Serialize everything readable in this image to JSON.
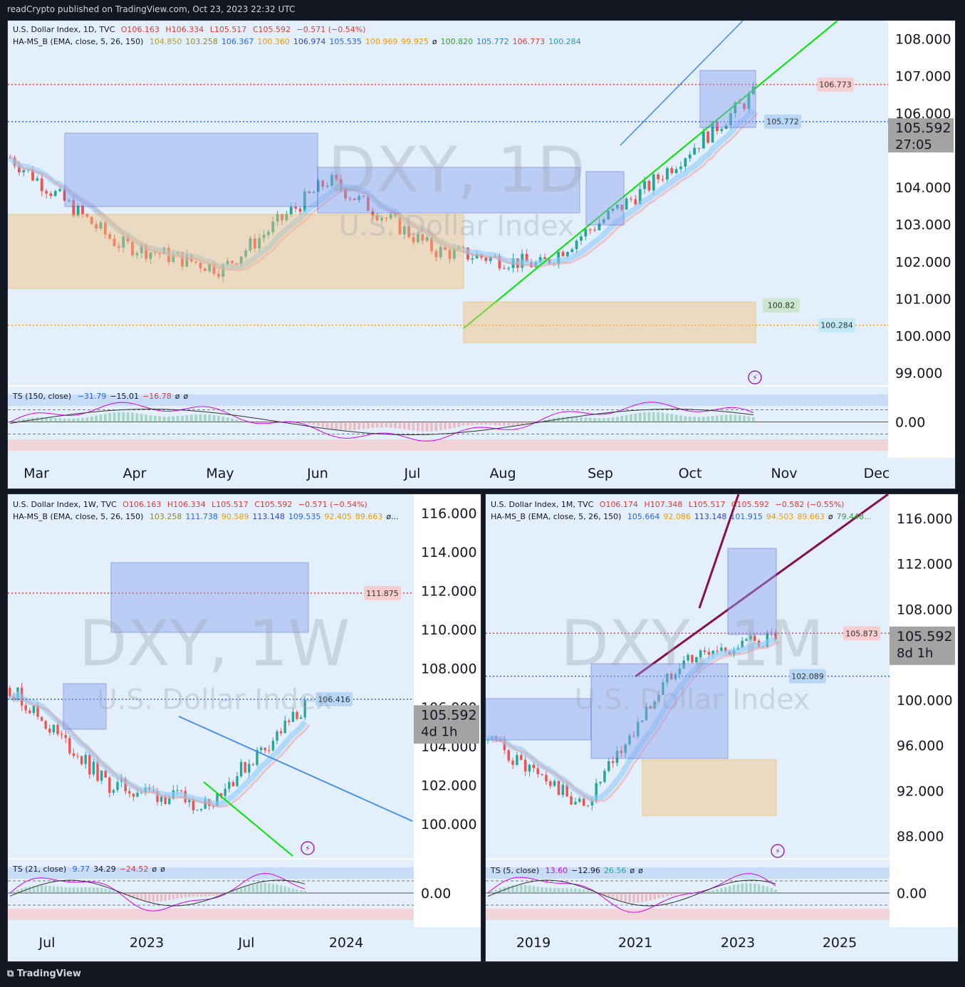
{
  "header": {
    "published": "readCrypto published on TradingView.com, Oct 23, 2023 22:32 UTC"
  },
  "footer": {
    "logo": "TradingView"
  },
  "colors": {
    "page_bg": "#131722",
    "panel_bg": "#e3effa",
    "up": "#26a69a",
    "down": "#ef5350",
    "blue_line": "#2962ff",
    "green_line": "#00e600",
    "purple_line": "#880e4f"
  },
  "panels": [
    {
      "id": "daily",
      "symbol_line": {
        "name": "U.S. Dollar Index, 1D, TVC",
        "o": "O106.163",
        "h": "H106.334",
        "l": "L105.517",
        "c": "C105.592",
        "chg": "−0.571 (−0.54%)"
      },
      "indicator_line": {
        "name": "HA-MS_B (EMA, close, 5, 26, 150)",
        "values": [
          {
            "v": "104.850",
            "c": "#b5a22a"
          },
          {
            "v": "103.258",
            "c": "#8f8a2e"
          },
          {
            "v": "106.367",
            "c": "#2962ff"
          },
          {
            "v": "100.360",
            "c": "#f59b00"
          },
          {
            "v": "106.974",
            "c": "#3344cc"
          },
          {
            "v": "105.535",
            "c": "#2962ff"
          },
          {
            "v": "100.969",
            "c": "#f59b00"
          },
          {
            "v": "99.925",
            "c": "#f59b00"
          },
          {
            "v": "ø",
            "c": "#131722"
          },
          {
            "v": "100.820",
            "c": "#3c9b3c"
          },
          {
            "v": "105.772",
            "c": "#2a7bd6"
          },
          {
            "v": "106.773",
            "c": "#e53935"
          },
          {
            "v": "100.284",
            "c": "#19a3c0"
          }
        ]
      },
      "ts_line": {
        "name": "TS (150, close)",
        "values": [
          {
            "v": "−31.79",
            "c": "#2962ff"
          },
          {
            "v": "−15.01",
            "c": "#131722"
          },
          {
            "v": "−16.78",
            "c": "#e53935"
          },
          {
            "v": "ø",
            "c": "#131722"
          },
          {
            "v": "ø",
            "c": "#131722"
          }
        ]
      },
      "watermark": {
        "big": "DXY, 1D",
        "small": "U.S. Dollar Index"
      },
      "y_ticks": [
        "108.000",
        "107.000",
        "106.000",
        "104.000",
        "103.000",
        "102.000",
        "101.000",
        "100.000",
        "99.000"
      ],
      "y_tick_values": [
        108,
        107,
        106,
        104,
        103,
        102,
        101,
        100,
        99
      ],
      "osc_tick": "0.00",
      "x_ticks": [
        "Mar",
        "Apr",
        "May",
        "Jun",
        "Jul",
        "Aug",
        "Sep",
        "Oct",
        "Nov",
        "Dec"
      ],
      "price_box": {
        "price": "105.592",
        "time": "27:05"
      },
      "labels": [
        {
          "text": "106.773",
          "value": 106.773,
          "kind": "red"
        },
        {
          "text": "105.772",
          "value": 105.772,
          "kind": "blue"
        },
        {
          "text": "100.82",
          "value": 100.82,
          "kind": "green"
        },
        {
          "text": "100.284",
          "value": 100.284,
          "kind": "cyan"
        }
      ],
      "ylim": [
        98.8,
        108.3
      ]
    },
    {
      "id": "weekly",
      "symbol_line": {
        "name": "U.S. Dollar Index, 1W, TVC",
        "o": "O106.163",
        "h": "H106.334",
        "l": "L105.517",
        "c": "C105.592",
        "chg": "−0.571 (−0.54%)"
      },
      "indicator_line": {
        "name": "HA-MS_B (EMA, close, 5, 26, 150)",
        "values": [
          {
            "v": "103.258",
            "c": "#8f8a2e"
          },
          {
            "v": "111.738",
            "c": "#2962ff"
          },
          {
            "v": "90.589",
            "c": "#f59b00"
          },
          {
            "v": "113.148",
            "c": "#3344cc"
          },
          {
            "v": "109.535",
            "c": "#2962ff"
          },
          {
            "v": "92.405",
            "c": "#f59b00"
          },
          {
            "v": "89.663",
            "c": "#f59b00"
          },
          {
            "v": "ø...",
            "c": "#131722"
          }
        ]
      },
      "ts_line": {
        "name": "TS (21, close)",
        "values": [
          {
            "v": "9.77",
            "c": "#2962ff"
          },
          {
            "v": "34.29",
            "c": "#131722"
          },
          {
            "v": "−24.52",
            "c": "#e53935"
          },
          {
            "v": "ø",
            "c": "#131722"
          },
          {
            "v": "ø",
            "c": "#131722"
          }
        ]
      },
      "watermark": {
        "big": "DXY, 1W",
        "small": "U.S. Dollar Index"
      },
      "y_ticks": [
        "116.000",
        "114.000",
        "112.000",
        "110.000",
        "108.000",
        "106.000",
        "104.000",
        "102.000",
        "100.000"
      ],
      "y_tick_values": [
        116,
        114,
        112,
        110,
        108,
        106,
        104,
        102,
        100
      ],
      "osc_tick": "0.00",
      "x_ticks": [
        "Jul",
        "2023",
        "Jul",
        "2024"
      ],
      "price_box": {
        "price": "105.592",
        "time": "4d 1h"
      },
      "labels": [
        {
          "text": "111.875",
          "value": 111.875,
          "kind": "red"
        },
        {
          "text": "106.416",
          "value": 106.416,
          "kind": "blue"
        }
      ],
      "ylim": [
        98.2,
        116.6
      ]
    },
    {
      "id": "monthly",
      "symbol_line": {
        "name": "U.S. Dollar Index, 1M, TVC",
        "o": "O106.174",
        "h": "H107.348",
        "l": "L105.517",
        "c": "C105.592",
        "chg": "−0.582 (−0.55%)"
      },
      "indicator_line": {
        "name": "HA-MS_B (EMA, close, 5, 26, 150)",
        "values": [
          {
            "v": "105.664",
            "c": "#2962ff"
          },
          {
            "v": "92.086",
            "c": "#f59b00"
          },
          {
            "v": "113.148",
            "c": "#3344cc"
          },
          {
            "v": "101.915",
            "c": "#2962ff"
          },
          {
            "v": "94.503",
            "c": "#f59b00"
          },
          {
            "v": "89.663",
            "c": "#f59b00"
          },
          {
            "v": "ø",
            "c": "#131722"
          },
          {
            "v": "79.448...",
            "c": "#3c9b3c"
          }
        ]
      },
      "ts_line": {
        "name": "TS (5, close)",
        "values": [
          {
            "v": "13.60",
            "c": "#d500f9"
          },
          {
            "v": "−12.96",
            "c": "#131722"
          },
          {
            "v": "26.56",
            "c": "#26a69a"
          },
          {
            "v": "ø",
            "c": "#131722"
          },
          {
            "v": "ø",
            "c": "#131722"
          }
        ]
      },
      "watermark": {
        "big": "DXY, 1M",
        "small": "U.S. Dollar Index"
      },
      "y_ticks": [
        "116.000",
        "112.000",
        "108.000",
        "100.000",
        "96.000",
        "92.000",
        "88.000"
      ],
      "y_tick_values": [
        116,
        112,
        108,
        100,
        96,
        92,
        88
      ],
      "osc_tick": "0.00",
      "x_ticks": [
        "2019",
        "2021",
        "2023",
        "2025"
      ],
      "price_box": {
        "price": "105.592",
        "time": "8d 1h"
      },
      "labels": [
        {
          "text": "105.873",
          "value": 105.873,
          "kind": "red"
        },
        {
          "text": "102.089",
          "value": 102.089,
          "kind": "blue"
        }
      ],
      "ylim": [
        86,
        117.5
      ]
    }
  ],
  "chart_data": [
    {
      "type": "line",
      "title": "U.S. Dollar Index, 1D, TVC",
      "timeframe": "1D",
      "x": [
        "Mar",
        "Apr",
        "May",
        "Jun",
        "Jul",
        "Aug",
        "Sep",
        "Oct"
      ],
      "series": [
        {
          "name": "U.S. Dollar Index",
          "values": [
            104.8,
            102.5,
            101.8,
            104.2,
            102.3,
            101.9,
            104.0,
            106.5
          ]
        }
      ],
      "last": 105.592,
      "ylim": [
        98.8,
        108.3
      ]
    },
    {
      "type": "line",
      "title": "U.S. Dollar Index, 1W, TVC",
      "timeframe": "1W",
      "x": [
        "Jul",
        "2023",
        "Jul",
        "2024"
      ],
      "series": [
        {
          "name": "U.S. Dollar Index",
          "values": [
            107.0,
            102.0,
            101.0,
            106.0
          ]
        }
      ],
      "last": 105.592,
      "ylim": [
        98.2,
        116.6
      ]
    },
    {
      "type": "line",
      "title": "U.S. Dollar Index, 1M, TVC",
      "timeframe": "1M",
      "x": [
        "2019",
        "2021",
        "2023",
        "2025"
      ],
      "series": [
        {
          "name": "U.S. Dollar Index",
          "values": [
            96.5,
            90.5,
            103.5,
            105.6
          ]
        }
      ],
      "last": 105.592,
      "ylim": [
        86,
        117.5
      ]
    }
  ]
}
